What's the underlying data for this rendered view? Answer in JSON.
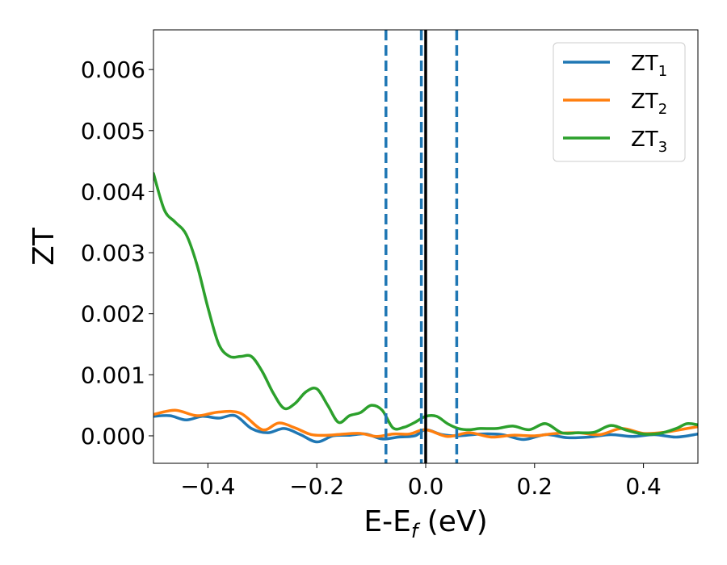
{
  "chart_data": {
    "type": "line",
    "xlabel": "E-E",
    "xlabel_subscript": "f",
    "xlabel_unit": " (eV)",
    "ylabel": "ZT",
    "xlim": [
      -0.5,
      0.5
    ],
    "ylim": [
      -0.00045,
      0.00665
    ],
    "xticks": [
      -0.4,
      -0.2,
      0.0,
      0.2,
      0.4
    ],
    "xtick_labels": [
      "−0.4",
      "−0.2",
      "0.0",
      "0.2",
      "0.4"
    ],
    "yticks": [
      0.0,
      0.001,
      0.002,
      0.003,
      0.004,
      0.005,
      0.006
    ],
    "ytick_labels": [
      "0.000",
      "0.001",
      "0.002",
      "0.003",
      "0.004",
      "0.005",
      "0.006"
    ],
    "grid": false,
    "legend_position": "top-right",
    "vlines": [
      {
        "x": -0.073,
        "style": "dashed",
        "color": "#1f77b4"
      },
      {
        "x": -0.008,
        "style": "dashed",
        "color": "#1f77b4"
      },
      {
        "x": 0.0,
        "style": "solid",
        "color": "#000000"
      },
      {
        "x": 0.057,
        "style": "dashed",
        "color": "#1f77b4"
      }
    ],
    "series": [
      {
        "name": "ZT",
        "name_subscript": "1",
        "color": "#1f77b4",
        "x": [
          -0.5,
          -0.47,
          -0.44,
          -0.41,
          -0.38,
          -0.35,
          -0.32,
          -0.29,
          -0.26,
          -0.23,
          -0.2,
          -0.17,
          -0.14,
          -0.11,
          -0.08,
          -0.05,
          -0.02,
          0.0,
          0.03,
          0.06,
          0.1,
          0.14,
          0.18,
          0.22,
          0.26,
          0.3,
          0.34,
          0.38,
          0.42,
          0.46,
          0.5
        ],
        "y": [
          0.00032,
          0.00033,
          0.00026,
          0.00032,
          0.00029,
          0.00033,
          0.00012,
          5e-05,
          0.00012,
          2e-05,
          -0.0001,
          0.0,
          1e-05,
          3e-05,
          -5e-05,
          -2e-05,
          0.0,
          0.0001,
          2e-05,
          0.0,
          3e-05,
          2e-05,
          -6e-05,
          2e-05,
          -3e-05,
          -2e-05,
          2e-05,
          -1e-05,
          2e-05,
          -2e-05,
          3e-05
        ]
      },
      {
        "name": "ZT",
        "name_subscript": "2",
        "color": "#ff7f0e",
        "x": [
          -0.5,
          -0.46,
          -0.42,
          -0.38,
          -0.34,
          -0.3,
          -0.27,
          -0.24,
          -0.21,
          -0.18,
          -0.15,
          -0.12,
          -0.09,
          -0.06,
          -0.03,
          0.0,
          0.04,
          0.08,
          0.12,
          0.16,
          0.2,
          0.24,
          0.28,
          0.32,
          0.36,
          0.4,
          0.44,
          0.48,
          0.5
        ],
        "y": [
          0.00035,
          0.00042,
          0.00033,
          0.00039,
          0.00037,
          0.0001,
          0.00021,
          0.00013,
          2e-05,
          1e-05,
          3e-05,
          4e-05,
          -1e-05,
          3e-05,
          3e-05,
          0.0001,
          -1e-05,
          5e-05,
          -2e-05,
          1e-05,
          0.0,
          4e-05,
          5e-05,
          2e-05,
          0.00012,
          4e-05,
          6e-05,
          0.00012,
          0.00015
        ]
      },
      {
        "name": "ZT",
        "name_subscript": "3",
        "color": "#2ca02c",
        "x": [
          -0.5,
          -0.48,
          -0.46,
          -0.44,
          -0.42,
          -0.4,
          -0.38,
          -0.36,
          -0.34,
          -0.32,
          -0.3,
          -0.28,
          -0.26,
          -0.24,
          -0.22,
          -0.2,
          -0.18,
          -0.16,
          -0.14,
          -0.12,
          -0.1,
          -0.08,
          -0.06,
          -0.04,
          -0.02,
          0.0,
          0.02,
          0.04,
          0.06,
          0.08,
          0.1,
          0.13,
          0.16,
          0.19,
          0.22,
          0.25,
          0.28,
          0.31,
          0.34,
          0.37,
          0.4,
          0.43,
          0.46,
          0.48,
          0.5
        ],
        "y": [
          0.0043,
          0.0037,
          0.0035,
          0.0033,
          0.0028,
          0.0021,
          0.0015,
          0.0013,
          0.0013,
          0.0013,
          0.00105,
          0.0007,
          0.00045,
          0.00053,
          0.00072,
          0.00077,
          0.0005,
          0.00022,
          0.00033,
          0.00038,
          0.0005,
          0.00042,
          0.00013,
          0.00014,
          0.00022,
          0.00032,
          0.00032,
          0.0002,
          0.00012,
          0.0001,
          0.00012,
          0.00012,
          0.00016,
          0.0001,
          0.0002,
          5e-05,
          5e-05,
          6e-05,
          0.00017,
          9e-05,
          3e-05,
          4e-05,
          0.00012,
          0.0002,
          0.00018
        ]
      }
    ]
  }
}
